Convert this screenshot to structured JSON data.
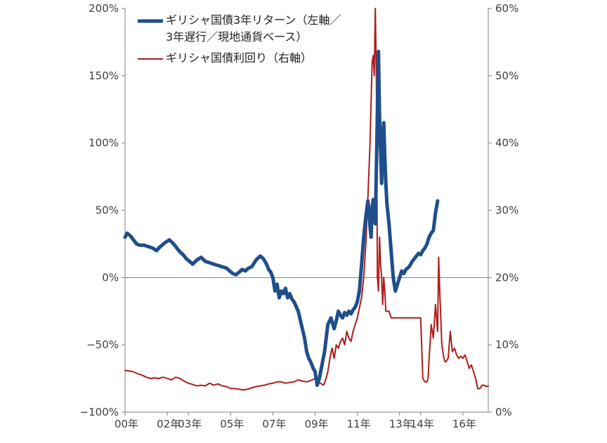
{
  "chart_data": {
    "type": "line",
    "title": "",
    "xlabel": "",
    "ylabel": "",
    "y_left": {
      "range": [
        -100,
        200
      ],
      "ticks": [
        200,
        150,
        100,
        50,
        0,
        -50,
        -100
      ],
      "tick_labels": [
        "200%",
        "150%",
        "100%",
        "50%",
        "0%",
        "−50%",
        "−100%"
      ]
    },
    "y_right": {
      "range": [
        0,
        60
      ],
      "ticks": [
        60,
        50,
        40,
        30,
        20,
        10,
        0
      ],
      "tick_labels": [
        "60%",
        "50%",
        "40%",
        "30%",
        "20%",
        "10%",
        "0%"
      ]
    },
    "x_axis": {
      "range": [
        2000.0,
        2017.2
      ],
      "ticks": [
        2000,
        2002,
        2003,
        2005,
        2007,
        2009,
        2011,
        2013,
        2014,
        2016
      ],
      "tick_labels": [
        "00年",
        "02年",
        "03年",
        "05年",
        "07年",
        "09年",
        "11年",
        "13年",
        "14年",
        "16年"
      ]
    },
    "grid": false,
    "legend_position": "top-left",
    "series": [
      {
        "name": "ギリシャ国債3年リターン（左軸／3年遅行／現地通貨ベース）",
        "legend_lines": [
          "ギリシャ国債3年リターン（左軸／",
          "3年遅行／現地通貨ベース）"
        ],
        "axis": "left",
        "color": "#1f4e8c",
        "x": [
          2000.0,
          2000.1,
          2000.25,
          2000.4,
          2000.55,
          2000.7,
          2000.9,
          2001.1,
          2001.3,
          2001.5,
          2001.6,
          2001.75,
          2001.9,
          2002.1,
          2002.3,
          2002.45,
          2002.6,
          2002.75,
          2002.9,
          2003.05,
          2003.2,
          2003.4,
          2003.6,
          2003.8,
          2004.0,
          2004.2,
          2004.4,
          2004.6,
          2004.8,
          2004.95,
          2005.1,
          2005.25,
          2005.4,
          2005.55,
          2005.7,
          2005.85,
          2006.0,
          2006.2,
          2006.4,
          2006.55,
          2006.7,
          2006.8,
          2006.9,
          2007.0,
          2007.1,
          2007.2,
          2007.3,
          2007.4,
          2007.5,
          2007.6,
          2007.7,
          2007.8,
          2007.9,
          2008.0,
          2008.2,
          2008.35,
          2008.5,
          2008.6,
          2008.7,
          2008.8,
          2008.9,
          2009.0,
          2009.1,
          2009.2,
          2009.3,
          2009.45,
          2009.6,
          2009.75,
          2009.9,
          2010.0,
          2010.1,
          2010.2,
          2010.3,
          2010.4,
          2010.5,
          2010.6,
          2010.7,
          2010.8,
          2010.9,
          2011.0,
          2011.1,
          2011.2,
          2011.3,
          2011.4,
          2011.5,
          2011.55,
          2011.6,
          2011.65,
          2011.7,
          2011.75,
          2011.8,
          2011.85,
          2011.9,
          2012.0,
          2012.05,
          2012.1,
          2012.15,
          2012.2,
          2012.25,
          2012.3,
          2012.35,
          2012.4,
          2012.5,
          2012.6,
          2012.7,
          2012.8,
          2012.9,
          2013.0,
          2013.1,
          2013.2,
          2013.3,
          2013.45,
          2013.6,
          2013.75,
          2013.9,
          2014.0,
          2014.1,
          2014.2,
          2014.3,
          2014.4,
          2014.5,
          2014.6,
          2014.7,
          2014.8
        ],
        "values": [
          30,
          33,
          31,
          28,
          25,
          24,
          24,
          23,
          22,
          20,
          22,
          24,
          26,
          28,
          25,
          22,
          19,
          17,
          14,
          12,
          10,
          13,
          15,
          12,
          11,
          10,
          9,
          8,
          7,
          5,
          3,
          2,
          4,
          6,
          5,
          7,
          8,
          13,
          16,
          14,
          10,
          6,
          4,
          0,
          -10,
          -5,
          -15,
          -10,
          -12,
          -8,
          -15,
          -12,
          -16,
          -18,
          -25,
          -35,
          -45,
          -55,
          -60,
          -63,
          -67,
          -70,
          -80,
          -75,
          -67,
          -55,
          -35,
          -30,
          -38,
          -32,
          -25,
          -28,
          -30,
          -26,
          -28,
          -25,
          -27,
          -24,
          -22,
          -18,
          -10,
          10,
          30,
          45,
          57,
          50,
          38,
          30,
          52,
          58,
          50,
          40,
          80,
          168,
          120,
          95,
          70,
          100,
          115,
          90,
          70,
          55,
          40,
          20,
          0,
          -10,
          -5,
          0,
          5,
          3,
          6,
          8,
          12,
          15,
          18,
          17,
          20,
          22,
          25,
          30,
          33,
          35,
          48,
          57
        ]
      },
      {
        "name": "ギリシャ国債利回り（右軸）",
        "legend_lines": [
          "ギリシャ国債利回り（右軸）"
        ],
        "axis": "right",
        "color": "#b01c1c",
        "x": [
          2000.0,
          2000.2,
          2000.4,
          2000.6,
          2000.8,
          2001.0,
          2001.2,
          2001.4,
          2001.6,
          2001.8,
          2002.0,
          2002.2,
          2002.4,
          2002.6,
          2002.8,
          2003.0,
          2003.2,
          2003.4,
          2003.6,
          2003.8,
          2004.0,
          2004.2,
          2004.4,
          2004.6,
          2004.8,
          2005.0,
          2005.2,
          2005.4,
          2005.6,
          2005.8,
          2006.0,
          2006.2,
          2006.4,
          2006.6,
          2006.8,
          2007.0,
          2007.2,
          2007.4,
          2007.6,
          2007.8,
          2008.0,
          2008.2,
          2008.4,
          2008.6,
          2008.8,
          2009.0,
          2009.1,
          2009.2,
          2009.3,
          2009.4,
          2009.5,
          2009.6,
          2009.7,
          2009.8,
          2009.9,
          2010.0,
          2010.1,
          2010.2,
          2010.3,
          2010.4,
          2010.5,
          2010.6,
          2010.7,
          2010.8,
          2010.9,
          2011.0,
          2011.1,
          2011.2,
          2011.3,
          2011.4,
          2011.5,
          2011.6,
          2011.7,
          2011.75,
          2011.8,
          2011.85,
          2011.9,
          2011.95,
          2012.0,
          2012.05,
          2012.1,
          2012.15,
          2012.2,
          2012.25,
          2012.3,
          2012.35,
          2012.4,
          2012.5,
          2012.6,
          2012.8,
          2013.0,
          2013.2,
          2013.4,
          2013.6,
          2013.8,
          2014.0,
          2014.1,
          2014.2,
          2014.3,
          2014.35,
          2014.4,
          2014.5,
          2014.6,
          2014.7,
          2014.8,
          2014.85,
          2014.9,
          2015.0,
          2015.1,
          2015.15,
          2015.2,
          2015.3,
          2015.4,
          2015.5,
          2015.6,
          2015.7,
          2015.8,
          2015.9,
          2016.0,
          2016.1,
          2016.2,
          2016.3,
          2016.4,
          2016.5,
          2016.6,
          2016.7,
          2016.8,
          2016.9,
          2017.0,
          2017.1,
          2017.2
        ],
        "values": [
          6.2,
          6.1,
          6.0,
          5.7,
          5.5,
          5.2,
          5.0,
          5.1,
          5.0,
          5.2,
          5.0,
          4.8,
          5.2,
          5.0,
          4.6,
          4.3,
          4.1,
          3.9,
          4.0,
          3.9,
          4.3,
          4.0,
          4.2,
          3.9,
          3.8,
          3.5,
          3.5,
          3.4,
          3.3,
          3.4,
          3.6,
          3.8,
          3.9,
          4.0,
          4.2,
          4.3,
          4.5,
          4.5,
          4.3,
          4.4,
          4.5,
          4.8,
          4.6,
          4.5,
          4.7,
          5.0,
          4.8,
          4.4,
          4.2,
          4.0,
          4.8,
          6.0,
          8.0,
          9.5,
          8.0,
          10.0,
          9.5,
          10.5,
          11.0,
          10.0,
          12.0,
          11.0,
          10.5,
          12.0,
          13.0,
          14.0,
          15.5,
          17.0,
          20.0,
          25.0,
          32.0,
          40.0,
          52.0,
          53.0,
          50.0,
          60.0,
          50.0,
          20.0,
          18.0,
          26.0,
          22.0,
          20.0,
          16.0,
          20.0,
          18.0,
          15.0,
          15.0,
          15.0,
          14.0,
          14.0,
          14.0,
          14.0,
          14.0,
          14.0,
          14.0,
          14.0,
          5.0,
          4.5,
          4.5,
          5.0,
          8.0,
          13.0,
          11.0,
          16.0,
          12.0,
          23.0,
          18.0,
          10.0,
          8.0,
          7.5,
          7.5,
          8.0,
          12.0,
          9.0,
          9.5,
          8.5,
          8.0,
          8.3,
          8.0,
          8.5,
          7.5,
          6.5,
          7.0,
          6.0,
          5.0,
          3.5,
          3.5,
          4.0,
          4.0,
          3.8,
          3.9
        ]
      }
    ]
  }
}
